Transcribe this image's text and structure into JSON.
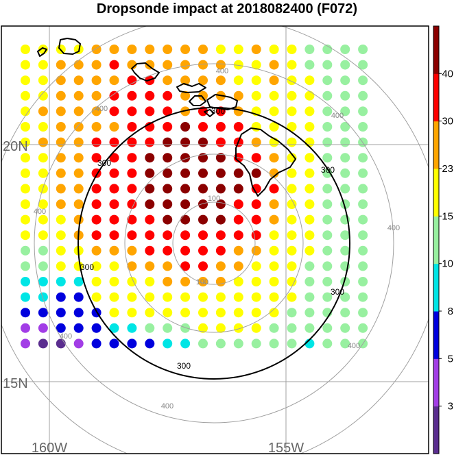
{
  "title": "Dropsonde impact at 2018082400 (F072)",
  "map": {
    "lat_labels": [
      "20N",
      "15N"
    ],
    "lon_labels": [
      "160W",
      "155W"
    ],
    "contours": [
      {
        "label": "100",
        "color": "#888888"
      },
      {
        "label": "300",
        "color": "#000000"
      },
      {
        "label": "400",
        "color": "#888888"
      }
    ]
  },
  "colorbar": {
    "tick_labels": [
      "3",
      "5",
      "8",
      "10",
      "15",
      "23",
      "30",
      "40"
    ],
    "colors": [
      "#5a2d8f",
      "#a23de6",
      "#0000dd",
      "#00e5e5",
      "#98f0a0",
      "#ffff00",
      "#ffa500",
      "#ff0000",
      "#8b0000"
    ]
  },
  "grid": {
    "cols": 20,
    "rows": 20,
    "values": [
      "55556666666556554444",
      "55666766666655654444",
      "55666677666655655444",
      "55666777766665555444",
      "56666777767765555444",
      "55666677787775555444",
      "56667777888776555444",
      "55667778888877655444",
      "55667778888888655444",
      "55667778888887755444",
      "55667778888877655444",
      "55567777888877655444",
      "55567777777777555444",
      "44556667777766555444",
      "44555566677665554444",
      "33335555666655554444",
      "33225555555555554444",
      "22222555555555544444",
      "11222334445555444444",
      "10012222334444443444"
    ]
  }
}
